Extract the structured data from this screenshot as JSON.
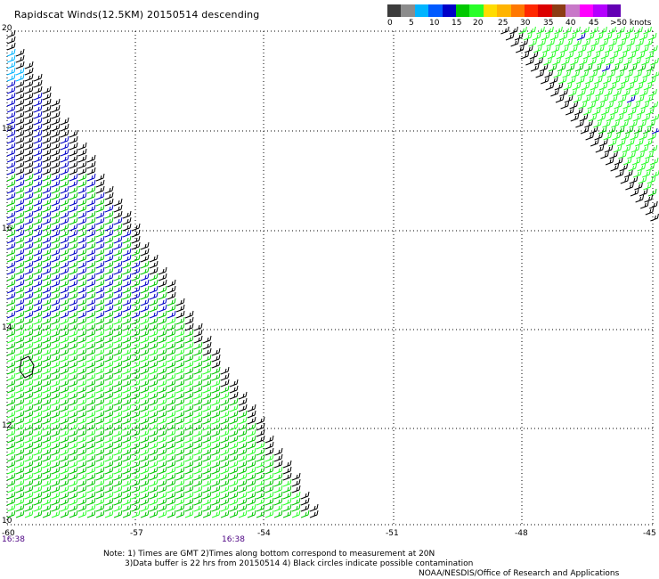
{
  "title": "Rapidscat Winds(12.5KM) 20150514 descending",
  "colorbar": {
    "colors": [
      "#3c3c3c",
      "#8c8c8c",
      "#00b4ff",
      "#005aff",
      "#0000c8",
      "#00c800",
      "#28ff28",
      "#ffdc00",
      "#ffb400",
      "#ff7800",
      "#ff2800",
      "#dc0000",
      "#8c3c14",
      "#c878c8",
      "#ff00ff",
      "#b400ff",
      "#6400b4"
    ],
    "labels": [
      "0",
      "5",
      "10",
      "15",
      "20",
      "25",
      "30",
      "35",
      "40",
      "45",
      ">50 knots"
    ]
  },
  "lat_labels": [
    "20",
    "18",
    "16",
    "14",
    "12",
    "10"
  ],
  "lon_labels": [
    "-60",
    "-57",
    "-54",
    "-51",
    "-48",
    "-45"
  ],
  "time_labels": [
    "16:38",
    "16:38"
  ],
  "notes": {
    "line1": "Note: 1) Times are GMT 2)Times along bottom correspond to measurement at 20N",
    "line2": "3)Data buffer is 22 hrs from 20150514 4) Black circles indicate possible contamination",
    "line3": "NOAA/NESDIS/Office of Research and Applications"
  },
  "wind_colors": {
    "black": "#000000",
    "blue": "#0000c8",
    "light_blue": "#00b4ff",
    "green": "#00c800",
    "light_green": "#28ff28"
  }
}
